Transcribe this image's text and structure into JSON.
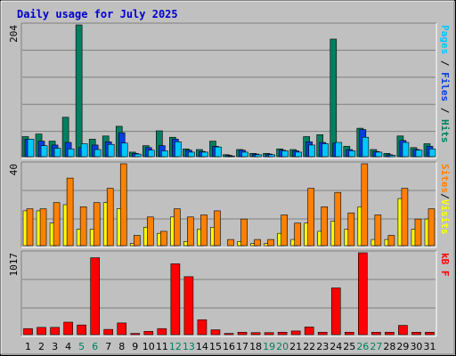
{
  "chart_data": {
    "type": "bar",
    "title": "Daily usage for July 2025",
    "categories": [
      "1",
      "2",
      "3",
      "4",
      "5",
      "6",
      "7",
      "8",
      "9",
      "10",
      "11",
      "12",
      "13",
      "14",
      "15",
      "16",
      "17",
      "18",
      "19",
      "20",
      "21",
      "22",
      "23",
      "24",
      "25",
      "26",
      "27",
      "28",
      "29",
      "30",
      "31"
    ],
    "weekend_days": [
      "5",
      "6",
      "12",
      "13",
      "19",
      "20",
      "26",
      "27"
    ],
    "panels": [
      {
        "name": "hits-files-pages",
        "scale_label": "204",
        "ymax": 204,
        "legend": [
          {
            "text": "Pages",
            "color": "#00c8ff"
          },
          {
            "text": "Files",
            "color": "#0040e0"
          },
          {
            "text": "Hits",
            "color": "#008060"
          }
        ],
        "series": [
          {
            "name": "Hits",
            "color": "#008060",
            "values": [
              31,
              35,
              24,
              61,
              204,
              27,
              32,
              47,
              7,
              17,
              40,
              30,
              12,
              11,
              24,
              3,
              11,
              5,
              5,
              12,
              11,
              31,
              34,
              182,
              16,
              44,
              11,
              5,
              32,
              14,
              20
            ]
          },
          {
            "name": "Files",
            "color": "#0040e0",
            "values": [
              27,
              24,
              18,
              22,
              14,
              18,
              23,
              37,
              5,
              14,
              17,
              27,
              10,
              8,
              16,
              2,
              10,
              4,
              4,
              10,
              9,
              23,
              22,
              21,
              11,
              42,
              8,
              3,
              25,
              11,
              16
            ]
          },
          {
            "name": "Pages",
            "color": "#00c8ff",
            "values": [
              27,
              17,
              13,
              12,
              20,
              11,
              19,
              21,
              4,
              10,
              9,
              23,
              7,
              7,
              15,
              1,
              7,
              3,
              3,
              9,
              7,
              18,
              20,
              22,
              9,
              30,
              7,
              2,
              22,
              10,
              12
            ]
          }
        ]
      },
      {
        "name": "visits-sites",
        "scale_label": "40",
        "ymax": 40,
        "legend": [
          {
            "text": "Sites",
            "color": "#ff8000"
          },
          {
            "text": "/",
            "color": "#000000"
          },
          {
            "text": "Visits",
            "color": "#ffff00"
          }
        ],
        "series": [
          {
            "name": "Visits",
            "color": "#ffff00",
            "values": [
              17,
              17,
              11,
              20,
              8,
              8,
              21,
              18,
              1,
              9,
              6,
              14,
              2,
              8,
              9,
              0,
              2,
              1,
              1,
              6,
              3,
              11,
              7,
              12,
              8,
              19,
              3,
              3,
              23,
              8,
              13
            ]
          },
          {
            "name": "Sites",
            "color": "#ff8000",
            "values": [
              18,
              18,
              21,
              33,
              19,
              21,
              28,
              40,
              5,
              14,
              7,
              18,
              14,
              15,
              17,
              3,
              13,
              3,
              3,
              15,
              11,
              28,
              19,
              26,
              16,
              40,
              15,
              5,
              28,
              13,
              18
            ]
          }
        ]
      },
      {
        "name": "kbytes",
        "scale_label": "1017",
        "ymax": 1017,
        "legend": [
          {
            "text": "kB F",
            "color": "#ff0000"
          }
        ],
        "series": [
          {
            "name": "kB F",
            "color": "#ff0000",
            "values": [
              75,
              90,
              90,
              155,
              120,
              955,
              65,
              145,
              15,
              40,
              75,
              880,
              720,
              185,
              60,
              15,
              30,
              25,
              25,
              30,
              45,
              95,
              30,
              580,
              30,
              1017,
              30,
              30,
              115,
              30,
              30
            ]
          }
        ]
      }
    ]
  }
}
